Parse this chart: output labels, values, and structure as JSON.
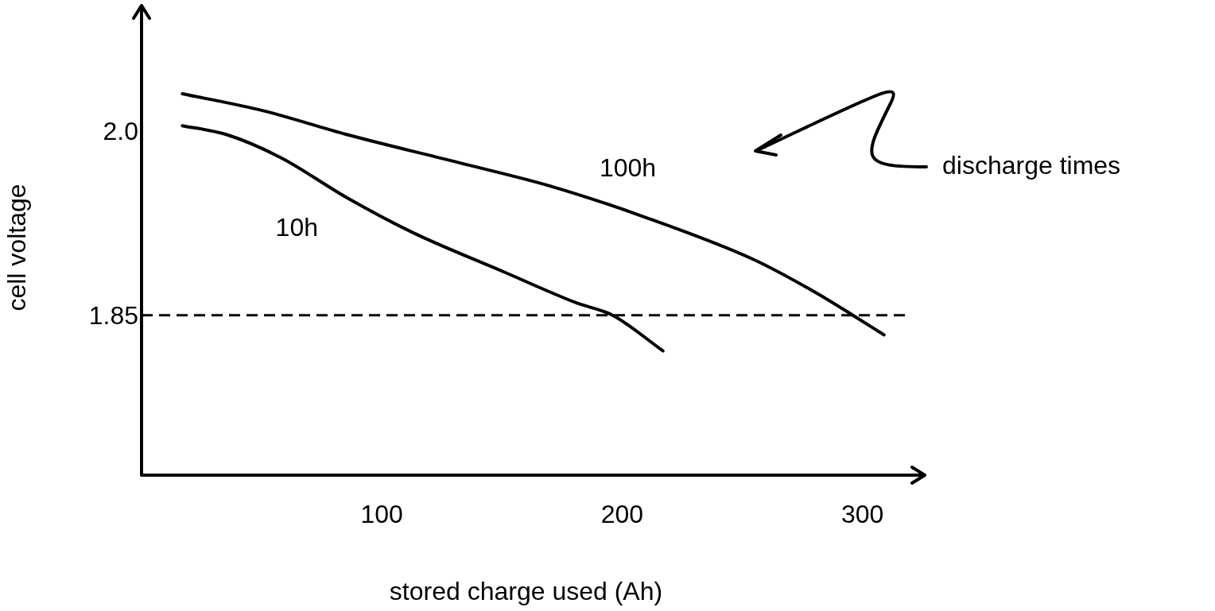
{
  "chart_data": {
    "type": "line",
    "xlabel": "stored charge used (Ah)",
    "ylabel": "cell voltage",
    "xlim": [
      0,
      320
    ],
    "xticks": [
      100,
      200,
      300
    ],
    "ylim": [
      1.72,
      2.09
    ],
    "yticks": [
      1.85,
      {
        "value": 2.0,
        "label": "2.0"
      }
    ],
    "grid": false,
    "legend": false,
    "marker": "none",
    "line_style": "solid",
    "series": [
      {
        "name": "100h",
        "color": "#000000",
        "x": [
          17,
          51,
          85,
          132,
          170,
          209,
          255,
          280,
          296,
          309
        ],
        "values": [
          2.03,
          2.016,
          1.997,
          1.974,
          1.955,
          1.93,
          1.895,
          1.869,
          1.85,
          1.834
        ]
      },
      {
        "name": "10h",
        "color": "#000000",
        "x": [
          17,
          35,
          58,
          85,
          113,
          151,
          181,
          196,
          217
        ],
        "values": [
          2.004,
          1.997,
          1.978,
          1.946,
          1.917,
          1.885,
          1.86,
          1.85,
          1.821
        ]
      }
    ],
    "ref_lines": [
      {
        "axis": "y",
        "value": 1.85,
        "label": null,
        "color": "#000000",
        "line_style": "dashed"
      }
    ],
    "annotations": [
      "discharge times"
    ]
  }
}
